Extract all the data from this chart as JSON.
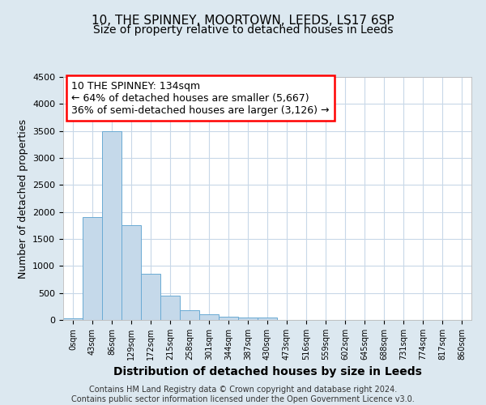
{
  "title1": "10, THE SPINNEY, MOORTOWN, LEEDS, LS17 6SP",
  "title2": "Size of property relative to detached houses in Leeds",
  "xlabel": "Distribution of detached houses by size in Leeds",
  "ylabel": "Number of detached properties",
  "categories": [
    "0sqm",
    "43sqm",
    "86sqm",
    "129sqm",
    "172sqm",
    "215sqm",
    "258sqm",
    "301sqm",
    "344sqm",
    "387sqm",
    "430sqm",
    "473sqm",
    "516sqm",
    "559sqm",
    "602sqm",
    "645sqm",
    "688sqm",
    "731sqm",
    "774sqm",
    "817sqm",
    "860sqm"
  ],
  "values": [
    30,
    1900,
    3500,
    1750,
    850,
    450,
    175,
    100,
    60,
    50,
    40,
    0,
    0,
    0,
    0,
    0,
    0,
    0,
    0,
    0,
    0
  ],
  "bar_color": "#c5d9ea",
  "bar_edge_color": "#6aaad4",
  "ylim": [
    0,
    4500
  ],
  "yticks": [
    0,
    500,
    1000,
    1500,
    2000,
    2500,
    3000,
    3500,
    4000,
    4500
  ],
  "fig_bg_color": "#dce8f0",
  "plot_bg_color": "#ffffff",
  "grid_color": "#c8d8e8",
  "annotation_line1": "10 THE SPINNEY: 134sqm",
  "annotation_line2": "← 64% of detached houses are smaller (5,667)",
  "annotation_line3": "36% of semi-detached houses are larger (3,126) →",
  "footer_text": "Contains HM Land Registry data © Crown copyright and database right 2024.\nContains public sector information licensed under the Open Government Licence v3.0.",
  "title1_fontsize": 11,
  "title2_fontsize": 10,
  "xlabel_fontsize": 10,
  "ylabel_fontsize": 9,
  "annotation_fontsize": 9,
  "footer_fontsize": 7
}
